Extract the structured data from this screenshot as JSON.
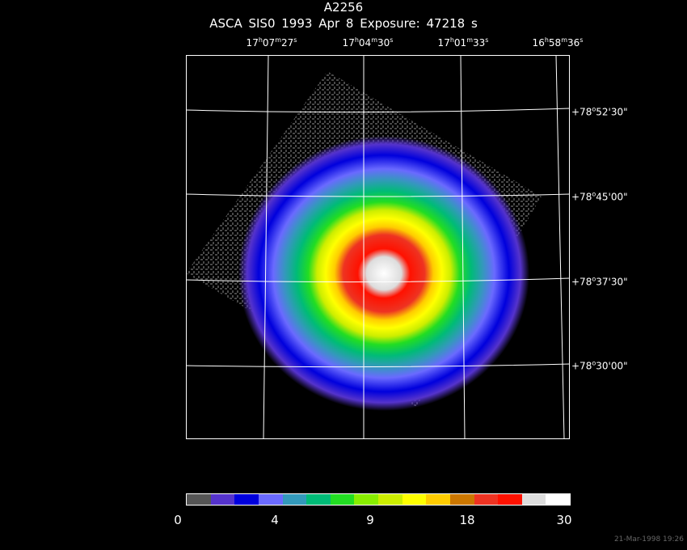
{
  "title": "A2256",
  "subtitle": "ASCA SIS0   1993 Apr  8    Exposure: 47218  s",
  "ra_ticks": [
    {
      "h": "17",
      "m": "07",
      "s": "27"
    },
    {
      "h": "17",
      "m": "04",
      "s": "30"
    },
    {
      "h": "17",
      "m": "01",
      "s": "33"
    },
    {
      "h": "16",
      "m": "58",
      "s": "36"
    }
  ],
  "dec_ticks": [
    {
      "deg": "+78",
      "min": "52",
      "sec": "30"
    },
    {
      "deg": "+78",
      "min": "45",
      "sec": "00"
    },
    {
      "deg": "+78",
      "min": "37",
      "sec": "30"
    },
    {
      "deg": "+78",
      "min": "30",
      "sec": "00"
    }
  ],
  "colorbar": {
    "colors": [
      "#555555",
      "#5533cc",
      "#0000dd",
      "#6a6aff",
      "#3399bb",
      "#00bb77",
      "#22dd22",
      "#88ee00",
      "#ccee00",
      "#ffff00",
      "#ffcc00",
      "#cc7700",
      "#ee3322",
      "#ff1100",
      "#dddddd",
      "#ffffff"
    ],
    "labels": [
      "0",
      "4",
      "9",
      "18",
      "30"
    ]
  },
  "timestamp": "21-Mar-1998 19:26"
}
